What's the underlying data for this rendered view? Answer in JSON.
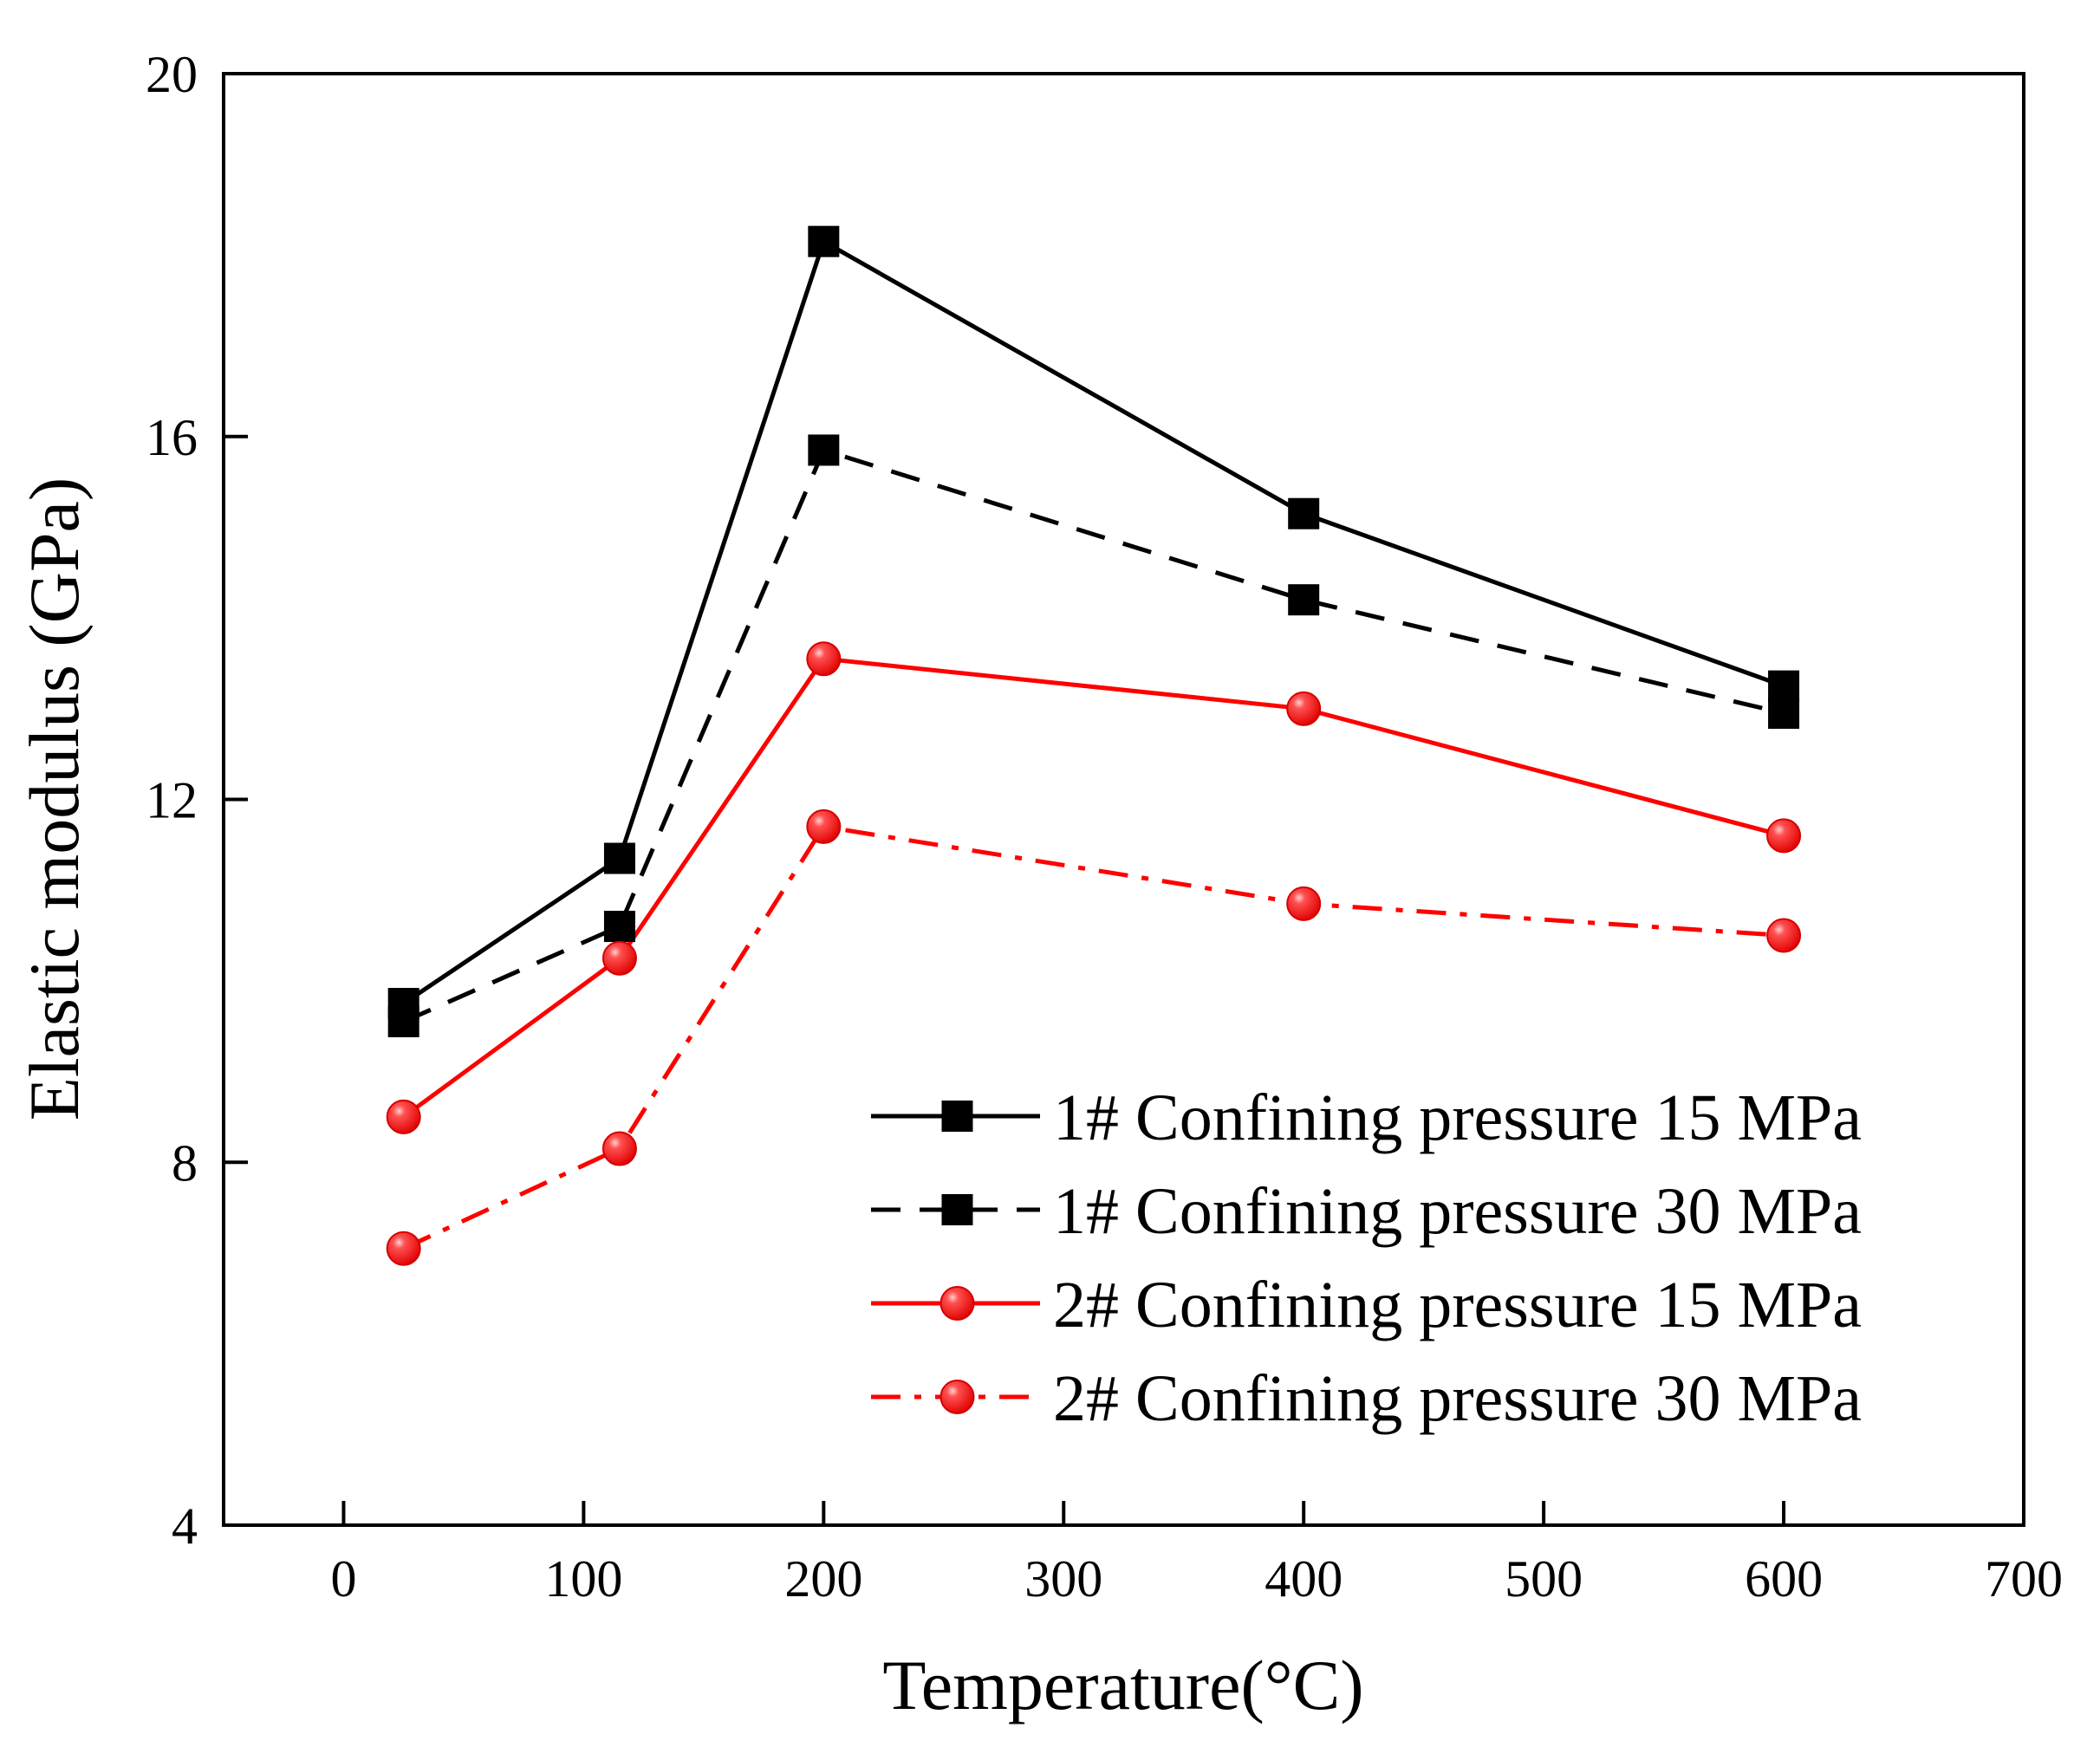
{
  "chart_data": {
    "type": "line",
    "title": "",
    "xlabel": "Temperature(°C)",
    "ylabel": "Elastic modulus (GPa)",
    "xlim": [
      -50,
      700
    ],
    "ylim": [
      4,
      20
    ],
    "xticks": [
      0,
      100,
      200,
      300,
      400,
      500,
      600,
      700
    ],
    "yticks": [
      4,
      8,
      12,
      16,
      20
    ],
    "grid": false,
    "legend_position": "bottom-right",
    "x": [
      25,
      115,
      200,
      400,
      600
    ],
    "series": [
      {
        "name": "1# Confining pressure 15 MPa",
        "values": [
          9.75,
          11.35,
          18.15,
          15.15,
          13.25
        ],
        "color": "#000000",
        "line_style": "solid",
        "marker": "square"
      },
      {
        "name": "1# Confining pressure 30 MPa",
        "values": [
          9.55,
          10.6,
          15.85,
          14.2,
          12.95
        ],
        "color": "#000000",
        "line_style": "dashed",
        "marker": "square"
      },
      {
        "name": "2# Confining pressure 15 MPa",
        "values": [
          8.5,
          10.25,
          13.55,
          13.0,
          11.6
        ],
        "color": "#ff0000",
        "line_style": "solid",
        "marker": "circle"
      },
      {
        "name": "2# Confining pressure 30 MPa",
        "values": [
          7.05,
          8.15,
          11.7,
          10.85,
          10.5
        ],
        "color": "#ff0000",
        "line_style": "dashdot",
        "marker": "circle"
      }
    ]
  }
}
